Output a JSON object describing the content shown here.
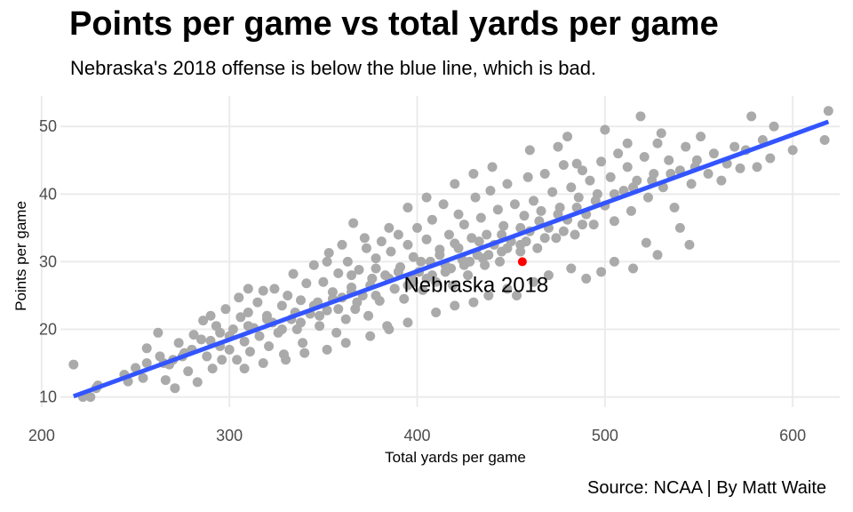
{
  "chart_data": {
    "type": "scatter",
    "title": "Points per game vs total yards per game",
    "subtitle": "Nebraska's 2018 offense is below the blue line, which is bad.",
    "caption": "Source: NCAA | By Matt Waite",
    "xlabel": "Total yards per game",
    "ylabel": "Points per game",
    "xlim": [
      210,
      625
    ],
    "ylim": [
      8.5,
      54.5
    ],
    "x_ticks": [
      "200",
      "300",
      "400",
      "500",
      "600"
    ],
    "y_ticks": [
      "10",
      "20",
      "30",
      "40",
      "50"
    ],
    "grid": true,
    "colors": {
      "points": "#aaaaaa",
      "highlight": "#ff0000",
      "fit_line": "#3355ff",
      "grid": "#ebebeb"
    },
    "fit_line": {
      "x": [
        217,
        619
      ],
      "y": [
        10.1,
        50.7
      ]
    },
    "highlight": {
      "label": "Nebraska 2018",
      "x": 456,
      "y": 30
    },
    "series": [
      {
        "values": [
          [
            217,
            14.8
          ],
          [
            222,
            10.0
          ],
          [
            226,
            10.0
          ],
          [
            229,
            11.3
          ],
          [
            230,
            11.7
          ],
          [
            244,
            13.3
          ],
          [
            246,
            12.3
          ],
          [
            250,
            14.3
          ],
          [
            254,
            12.8
          ],
          [
            256,
            15.0
          ],
          [
            256,
            17.2
          ],
          [
            263,
            16.0
          ],
          [
            266,
            12.5
          ],
          [
            268,
            14.8
          ],
          [
            270,
            15.5
          ],
          [
            271,
            11.3
          ],
          [
            273,
            18.0
          ],
          [
            276,
            16.5
          ],
          [
            278,
            13.8
          ],
          [
            280,
            17.0
          ],
          [
            281,
            19.2
          ],
          [
            283,
            12.2
          ],
          [
            286,
            21.3
          ],
          [
            288,
            16.0
          ],
          [
            290,
            18.3
          ],
          [
            291,
            14.2
          ],
          [
            293,
            20.5
          ],
          [
            295,
            19.5
          ],
          [
            296,
            15.5
          ],
          [
            298,
            23.0
          ],
          [
            300,
            17.0
          ],
          [
            302,
            20.0
          ],
          [
            304,
            15.5
          ],
          [
            305,
            24.7
          ],
          [
            306,
            21.8
          ],
          [
            308,
            18.2
          ],
          [
            310,
            22.5
          ],
          [
            311,
            16.7
          ],
          [
            313,
            20.2
          ],
          [
            315,
            24.0
          ],
          [
            316,
            19.0
          ],
          [
            318,
            25.7
          ],
          [
            320,
            22.0
          ],
          [
            321,
            17.5
          ],
          [
            323,
            21.0
          ],
          [
            324,
            26.0
          ],
          [
            326,
            19.5
          ],
          [
            328,
            23.5
          ],
          [
            329,
            16.3
          ],
          [
            331,
            25.0
          ],
          [
            333,
            21.5
          ],
          [
            334,
            28.2
          ],
          [
            336,
            20.0
          ],
          [
            338,
            24.3
          ],
          [
            339,
            18.0
          ],
          [
            341,
            26.8
          ],
          [
            343,
            22.3
          ],
          [
            345,
            29.5
          ],
          [
            347,
            24.0
          ],
          [
            348,
            20.5
          ],
          [
            350,
            27.0
          ],
          [
            352,
            22.8
          ],
          [
            353,
            31.3
          ],
          [
            355,
            25.5
          ],
          [
            357,
            19.5
          ],
          [
            358,
            28.3
          ],
          [
            360,
            24.7
          ],
          [
            362,
            21.5
          ],
          [
            363,
            30.0
          ],
          [
            365,
            26.2
          ],
          [
            366,
            35.7
          ],
          [
            367,
            23.0
          ],
          [
            369,
            28.8
          ],
          [
            371,
            25.0
          ],
          [
            373,
            32.0
          ],
          [
            374,
            22.0
          ],
          [
            376,
            27.5
          ],
          [
            378,
            30.5
          ],
          [
            380,
            24.2
          ],
          [
            381,
            33.0
          ],
          [
            383,
            28.0
          ],
          [
            384,
            20.5
          ],
          [
            386,
            31.5
          ],
          [
            388,
            26.0
          ],
          [
            390,
            34.0
          ],
          [
            391,
            29.2
          ],
          [
            393,
            24.5
          ],
          [
            395,
            32.5
          ],
          [
            397,
            27.7
          ],
          [
            398,
            30.7
          ],
          [
            400,
            35.0
          ],
          [
            401,
            28.5
          ],
          [
            403,
            25.8
          ],
          [
            405,
            33.3
          ],
          [
            407,
            30.0
          ],
          [
            408,
            36.2
          ],
          [
            410,
            27.0
          ],
          [
            412,
            31.8
          ],
          [
            414,
            38.5
          ],
          [
            415,
            29.5
          ],
          [
            417,
            34.0
          ],
          [
            419,
            26.5
          ],
          [
            420,
            32.7
          ],
          [
            422,
            37.0
          ],
          [
            424,
            30.3
          ],
          [
            425,
            35.5
          ],
          [
            427,
            28.0
          ],
          [
            429,
            33.5
          ],
          [
            431,
            39.5
          ],
          [
            432,
            31.0
          ],
          [
            434,
            36.5
          ],
          [
            436,
            29.5
          ],
          [
            437,
            34.0
          ],
          [
            439,
            40.5
          ],
          [
            441,
            32.5
          ],
          [
            443,
            37.7
          ],
          [
            444,
            30.0
          ],
          [
            446,
            35.3
          ],
          [
            448,
            41.5
          ],
          [
            450,
            33.0
          ],
          [
            452,
            38.5
          ],
          [
            453,
            25.0
          ],
          [
            455,
            31.5
          ],
          [
            457,
            36.8
          ],
          [
            459,
            42.5
          ],
          [
            460,
            34.5
          ],
          [
            462,
            39.0
          ],
          [
            464,
            32.0
          ],
          [
            466,
            37.5
          ],
          [
            468,
            43.0
          ],
          [
            470,
            35.0
          ],
          [
            472,
            40.3
          ],
          [
            474,
            33.5
          ],
          [
            476,
            38.0
          ],
          [
            478,
            44.3
          ],
          [
            480,
            36.2
          ],
          [
            482,
            41.0
          ],
          [
            484,
            34.0
          ],
          [
            486,
            39.5
          ],
          [
            488,
            43.5
          ],
          [
            490,
            37.0
          ],
          [
            492,
            42.0
          ],
          [
            494,
            35.5
          ],
          [
            496,
            40.0
          ],
          [
            498,
            44.8
          ],
          [
            500,
            38.3
          ],
          [
            503,
            42.5
          ],
          [
            505,
            36.0
          ],
          [
            507,
            46.0
          ],
          [
            510,
            40.5
          ],
          [
            512,
            44.0
          ],
          [
            514,
            37.5
          ],
          [
            517,
            42.0
          ],
          [
            519,
            51.5
          ],
          [
            521,
            45.5
          ],
          [
            523,
            39.5
          ],
          [
            526,
            43.0
          ],
          [
            528,
            47.5
          ],
          [
            531,
            41.0
          ],
          [
            534,
            45.0
          ],
          [
            537,
            38.0
          ],
          [
            540,
            43.5
          ],
          [
            543,
            47.0
          ],
          [
            546,
            41.5
          ],
          [
            549,
            45.0
          ],
          [
            551,
            48.5
          ],
          [
            555,
            43.0
          ],
          [
            558,
            46.0
          ],
          [
            562,
            42.0
          ],
          [
            565,
            44.5
          ],
          [
            569,
            47.0
          ],
          [
            572,
            43.8
          ],
          [
            575,
            46.5
          ],
          [
            578,
            51.5
          ],
          [
            581,
            44.0
          ],
          [
            584,
            48.0
          ],
          [
            588,
            45.3
          ],
          [
            590,
            50.0
          ],
          [
            600,
            46.5
          ],
          [
            617,
            48.0
          ],
          [
            619,
            52.3
          ],
          [
            540,
            35.0
          ],
          [
            545,
            32.5
          ],
          [
            522,
            32.8
          ],
          [
            528,
            31.0
          ],
          [
            515,
            29.0
          ],
          [
            505,
            30.0
          ],
          [
            498,
            28.5
          ],
          [
            490,
            27.5
          ],
          [
            482,
            29.0
          ],
          [
            470,
            28.0
          ],
          [
            462,
            27.0
          ],
          [
            448,
            26.0
          ],
          [
            438,
            25.0
          ],
          [
            430,
            24.0
          ],
          [
            420,
            23.5
          ],
          [
            410,
            22.5
          ],
          [
            395,
            21.0
          ],
          [
            385,
            20.0
          ],
          [
            375,
            19.0
          ],
          [
            362,
            18.0
          ],
          [
            352,
            17.0
          ],
          [
            340,
            16.5
          ],
          [
            330,
            15.5
          ],
          [
            318,
            15.0
          ],
          [
            308,
            14.2
          ],
          [
            420,
            41.5
          ],
          [
            430,
            43.0
          ],
          [
            395,
            38.0
          ],
          [
            405,
            39.5
          ],
          [
            440,
            44.0
          ],
          [
            460,
            46.5
          ],
          [
            475,
            47.0
          ],
          [
            480,
            48.5
          ],
          [
            485,
            44.5
          ],
          [
            500,
            49.5
          ],
          [
            512,
            47.5
          ],
          [
            530,
            49.0
          ],
          [
            352,
            30.0
          ],
          [
            360,
            32.5
          ],
          [
            372,
            33.5
          ],
          [
            385,
            35.0
          ],
          [
            365,
            28.0
          ],
          [
            378,
            29.0
          ],
          [
            390,
            28.5
          ],
          [
            402,
            30.0
          ],
          [
            412,
            31.0
          ],
          [
            422,
            32.0
          ],
          [
            433,
            33.0
          ],
          [
            445,
            34.0
          ],
          [
            455,
            35.0
          ],
          [
            465,
            36.0
          ],
          [
            475,
            37.0
          ],
          [
            485,
            38.0
          ],
          [
            495,
            39.0
          ],
          [
            505,
            40.0
          ],
          [
            515,
            41.0
          ],
          [
            525,
            42.0
          ],
          [
            535,
            43.0
          ],
          [
            548,
            44.0
          ],
          [
            395,
            26.5
          ],
          [
            405,
            27.5
          ],
          [
            415,
            28.5
          ],
          [
            425,
            29.5
          ],
          [
            435,
            30.5
          ],
          [
            445,
            31.5
          ],
          [
            455,
            32.5
          ],
          [
            468,
            33.5
          ],
          [
            478,
            34.5
          ],
          [
            488,
            35.5
          ],
          [
            335,
            22.5
          ],
          [
            345,
            23.5
          ],
          [
            355,
            24.5
          ],
          [
            365,
            25.5
          ],
          [
            375,
            26.5
          ],
          [
            385,
            27.5
          ],
          [
            328,
            20.0
          ],
          [
            338,
            21.0
          ],
          [
            348,
            22.0
          ],
          [
            358,
            23.0
          ],
          [
            368,
            24.0
          ],
          [
            378,
            25.0
          ],
          [
            388,
            26.0
          ],
          [
            398,
            27.0
          ],
          [
            408,
            28.0
          ],
          [
            418,
            29.0
          ],
          [
            428,
            30.0
          ],
          [
            438,
            31.0
          ],
          [
            448,
            32.0
          ],
          [
            458,
            33.0
          ],
          [
            300,
            19.0
          ],
          [
            310,
            20.5
          ],
          [
            320,
            21.5
          ],
          [
            295,
            17.5
          ],
          [
            285,
            18.5
          ],
          [
            275,
            16.0
          ],
          [
            265,
            15.0
          ],
          [
            262,
            19.5
          ],
          [
            290,
            22.0
          ],
          [
            310,
            26.0
          ]
        ]
      }
    ]
  }
}
